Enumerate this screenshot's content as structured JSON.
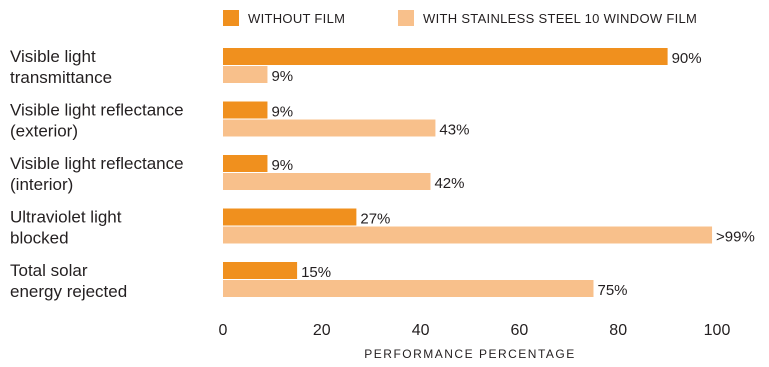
{
  "chart_data": {
    "type": "bar",
    "orientation": "horizontal",
    "categories": [
      [
        "Visible light",
        "transmittance"
      ],
      [
        "Visible light reflectance",
        "(exterior)"
      ],
      [
        "Visible light reflectance",
        "(interior)"
      ],
      [
        "Ultraviolet light",
        "blocked"
      ],
      [
        "Total solar",
        "energy rejected"
      ]
    ],
    "series": [
      {
        "name": "WITHOUT FILM",
        "color": "#f0901e",
        "values": [
          90,
          9,
          9,
          27,
          15
        ],
        "labels": [
          "90%",
          "9%",
          "9%",
          "27%",
          "15%"
        ]
      },
      {
        "name": "WITH STAINLESS STEEL 10 WINDOW FILM",
        "color": "#f8c08b",
        "values": [
          9,
          43,
          42,
          99,
          75
        ],
        "labels": [
          "9%",
          "43%",
          "42%",
          ">99%",
          "75%"
        ]
      }
    ],
    "xlabel": "PERFORMANCE PERCENTAGE",
    "xlim": [
      0,
      100
    ],
    "xticks": [
      0,
      20,
      40,
      60,
      80,
      100
    ],
    "grid": false,
    "legend_position": "top"
  }
}
